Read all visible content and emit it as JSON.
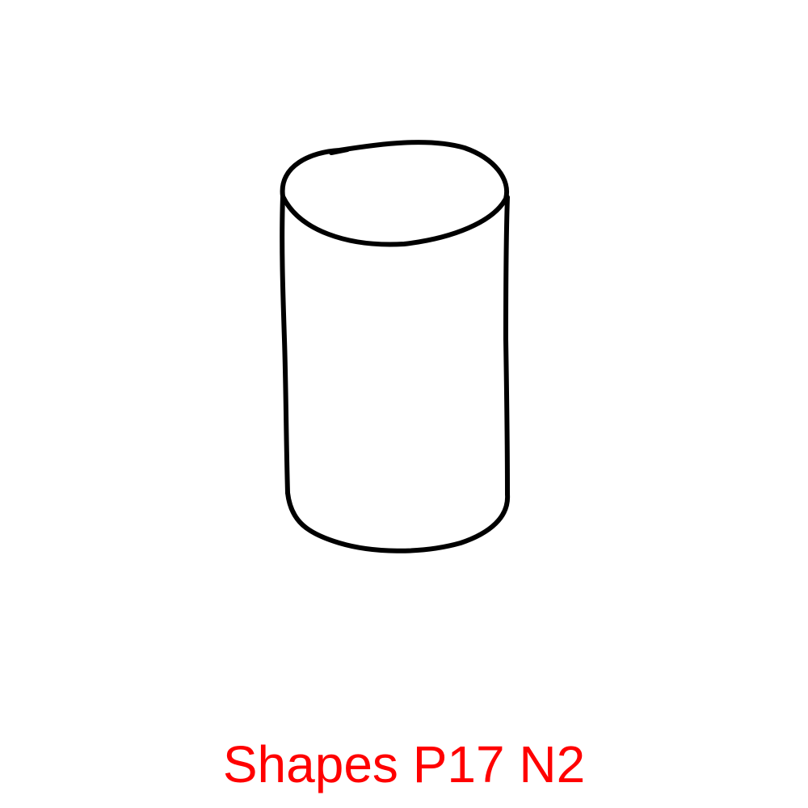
{
  "caption": {
    "text": "Shapes P17 N2",
    "color": "#ff0000"
  },
  "drawing": {
    "shape": "cylinder",
    "stroke_color": "#000000",
    "fill_color": "#ffffff"
  }
}
